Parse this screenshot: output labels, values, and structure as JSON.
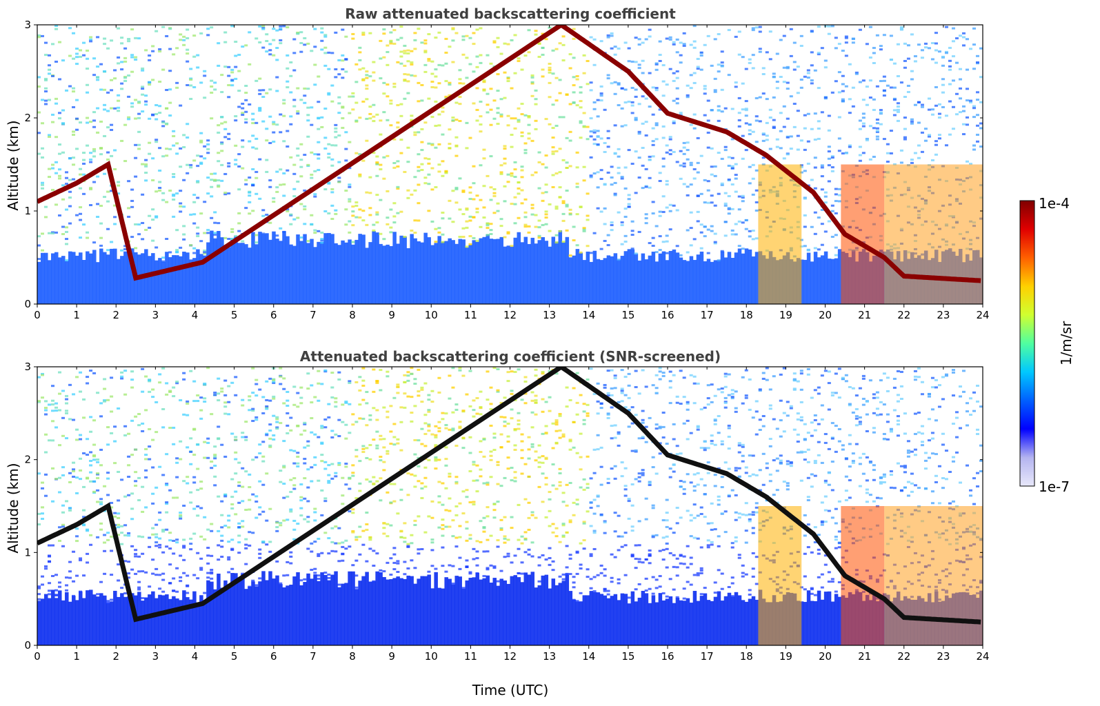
{
  "chart_data": [
    {
      "type": "heatmap",
      "title": "Raw attenuated backscattering coefficient",
      "xlabel": "",
      "ylabel": "Altitude (km)",
      "xlim": [
        0,
        24
      ],
      "ylim": [
        0,
        3
      ],
      "x_ticks": [
        "0",
        "1",
        "2",
        "3",
        "4",
        "5",
        "6",
        "7",
        "8",
        "9",
        "10",
        "11",
        "12",
        "13",
        "14",
        "15",
        "16",
        "17",
        "18",
        "19",
        "20",
        "21",
        "22",
        "23",
        "24"
      ],
      "y_ticks": [
        "0",
        "1",
        "2",
        "3"
      ],
      "cloud_layer_base_km": [
        {
          "time": 0.0,
          "alt": 1.1
        },
        {
          "time": 1.0,
          "alt": 1.3
        },
        {
          "time": 1.8,
          "alt": 1.5
        },
        {
          "time": 2.5,
          "alt": 0.28
        },
        {
          "time": 4.2,
          "alt": 0.45
        },
        {
          "time": 13.3,
          "alt": 3.0
        },
        {
          "time": 15.0,
          "alt": 2.5
        },
        {
          "time": 16.0,
          "alt": 2.05
        },
        {
          "time": 17.5,
          "alt": 1.85
        },
        {
          "time": 18.5,
          "alt": 1.6
        },
        {
          "time": 19.7,
          "alt": 1.2
        },
        {
          "time": 20.5,
          "alt": 0.75
        },
        {
          "time": 21.5,
          "alt": 0.5
        },
        {
          "time": 22.0,
          "alt": 0.3
        },
        {
          "time": 24.0,
          "alt": 0.25
        }
      ]
    },
    {
      "type": "heatmap",
      "title": "Attenuated backscattering coefficient (SNR-screened)",
      "xlabel": "Time (UTC)",
      "ylabel": "Altitude (km)",
      "xlim": [
        0,
        24
      ],
      "ylim": [
        0,
        3
      ],
      "x_ticks": [
        "0",
        "1",
        "2",
        "3",
        "4",
        "5",
        "6",
        "7",
        "8",
        "9",
        "10",
        "11",
        "12",
        "13",
        "14",
        "15",
        "16",
        "17",
        "18",
        "19",
        "20",
        "21",
        "22",
        "23",
        "24"
      ],
      "y_ticks": [
        "0",
        "1",
        "2",
        "3"
      ]
    }
  ],
  "colorbar": {
    "label": "1/m/sr",
    "max_label": "1e-4",
    "min_label": "1e-7",
    "colors": [
      "#e8e8fa",
      "#b4b4f0",
      "#0000ff",
      "#0060ff",
      "#00c8ff",
      "#50ffa0",
      "#d0ff30",
      "#ffd000",
      "#ff6000",
      "#e00000",
      "#800000"
    ]
  }
}
